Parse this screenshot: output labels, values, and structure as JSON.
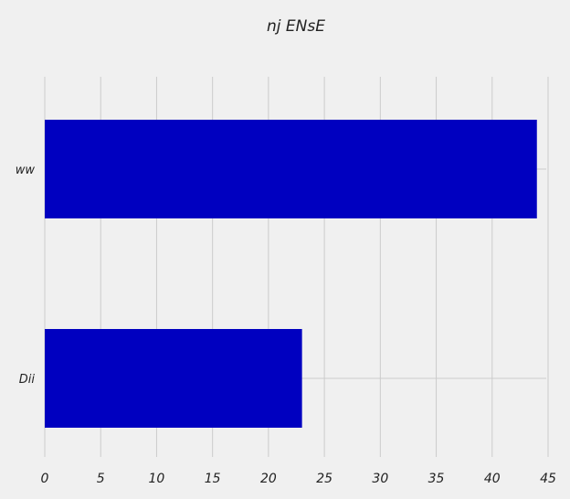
{
  "chart_data": {
    "type": "bar",
    "orientation": "horizontal",
    "title": "nj ENsE",
    "xlabel": "",
    "ylabel": "",
    "categories": [
      "Dii",
      "ww"
    ],
    "values": [
      23,
      44
    ],
    "xlim": [
      0,
      45
    ],
    "xticks": [
      0,
      5,
      10,
      15,
      20,
      25,
      30,
      35,
      40,
      45
    ],
    "grid": true,
    "bar_color": "#0000c0",
    "grid_color": "#cbcbcb",
    "background_color": "#f0f0f0"
  }
}
